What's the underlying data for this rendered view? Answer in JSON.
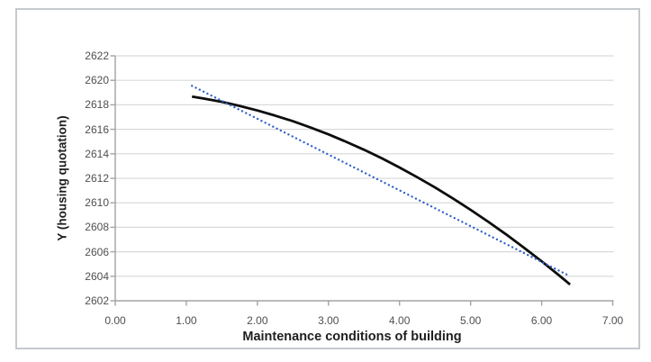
{
  "chart_data": {
    "type": "line",
    "title": "",
    "xlabel": "Maintenance conditions of building",
    "ylabel": "Y (housing quotation)",
    "xlim": [
      0,
      7
    ],
    "ylim": [
      2602,
      2622
    ],
    "grid": "horizontal",
    "legend": "none",
    "x_ticks": [
      {
        "label": "0.00",
        "value": 0
      },
      {
        "label": "1.00",
        "value": 1
      },
      {
        "label": "2.00",
        "value": 2
      },
      {
        "label": "3.00",
        "value": 3
      },
      {
        "label": "4.00",
        "value": 4
      },
      {
        "label": "5.00",
        "value": 5
      },
      {
        "label": "6.00",
        "value": 6
      },
      {
        "label": "7.00",
        "value": 7
      }
    ],
    "y_ticks": [
      {
        "label": "2602",
        "value": 2602
      },
      {
        "label": "2604",
        "value": 2604
      },
      {
        "label": "2606",
        "value": 2606
      },
      {
        "label": "2608",
        "value": 2608
      },
      {
        "label": "2610",
        "value": 2610
      },
      {
        "label": "2612",
        "value": 2612
      },
      {
        "label": "2614",
        "value": 2614
      },
      {
        "label": "2616",
        "value": 2616
      },
      {
        "label": "2618",
        "value": 2618
      },
      {
        "label": "2620",
        "value": 2620
      },
      {
        "label": "2622",
        "value": 2622
      }
    ],
    "series": [
      {
        "name": "solid-black-curve",
        "style": "solid",
        "color": "#0d0d0d",
        "width": 2.8,
        "points": [
          [
            1.08,
            2618.68
          ],
          [
            1.25,
            2618.51
          ],
          [
            1.5,
            2618.24
          ],
          [
            1.75,
            2617.91
          ],
          [
            2.0,
            2617.54
          ],
          [
            2.25,
            2617.12
          ],
          [
            2.5,
            2616.66
          ],
          [
            2.75,
            2616.14
          ],
          [
            3.0,
            2615.59
          ],
          [
            3.25,
            2614.98
          ],
          [
            3.5,
            2614.33
          ],
          [
            3.75,
            2613.63
          ],
          [
            4.0,
            2612.88
          ],
          [
            4.25,
            2612.09
          ],
          [
            4.5,
            2611.25
          ],
          [
            4.75,
            2610.36
          ],
          [
            5.0,
            2609.43
          ],
          [
            5.25,
            2608.44
          ],
          [
            5.5,
            2607.42
          ],
          [
            5.75,
            2606.34
          ],
          [
            6.0,
            2605.22
          ],
          [
            6.25,
            2604.05
          ],
          [
            6.4,
            2603.33
          ]
        ]
      },
      {
        "name": "dotted-blue-trendline",
        "style": "dotted",
        "color": "#2f62c6",
        "width": 2.3,
        "points": [
          [
            1.08,
            2619.55
          ],
          [
            6.35,
            2604.15
          ]
        ]
      }
    ],
    "colors": {
      "frame_border": "#c6c9cd",
      "axis_line": "#a3a3a3",
      "gridline": "#d9d9d9",
      "tick_label": "#4f4f4f",
      "axis_title": "#1f1f1f"
    }
  }
}
